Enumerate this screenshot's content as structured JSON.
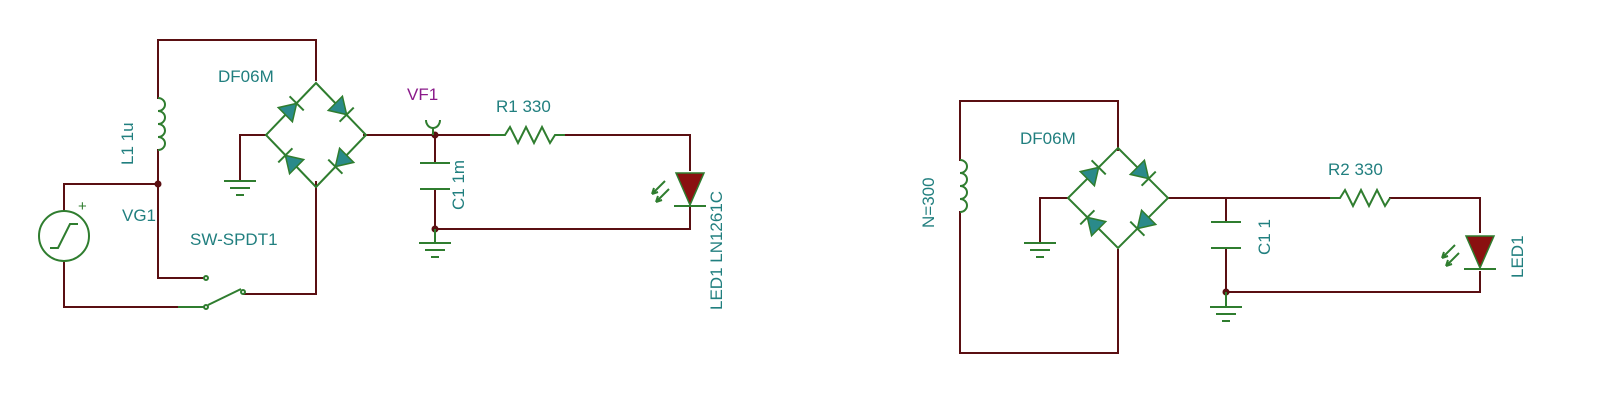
{
  "circuit1": {
    "bridge_label": "DF06M",
    "inductor_label": "L1 1u",
    "source_label": "VG1",
    "source_polarity": "+",
    "switch_label": "SW-SPDT1",
    "voltmeter_label": "VF1",
    "capacitor_label": "C1 1m",
    "resistor_label": "R1 330",
    "led_label": "LED1 LN1261C"
  },
  "circuit2": {
    "bridge_label": "DF06M",
    "coil_label": "N=300",
    "capacitor_label": "C1 1",
    "resistor_label": "R2 330",
    "led_label": "LED1"
  },
  "colors": {
    "wire": "#5a0f12",
    "component": "#2f7d2f",
    "label": "#217f7f",
    "probe_label": "#8a1a8a",
    "diode_fill": "#2a8a8a",
    "led_fill": "#8a1010"
  }
}
